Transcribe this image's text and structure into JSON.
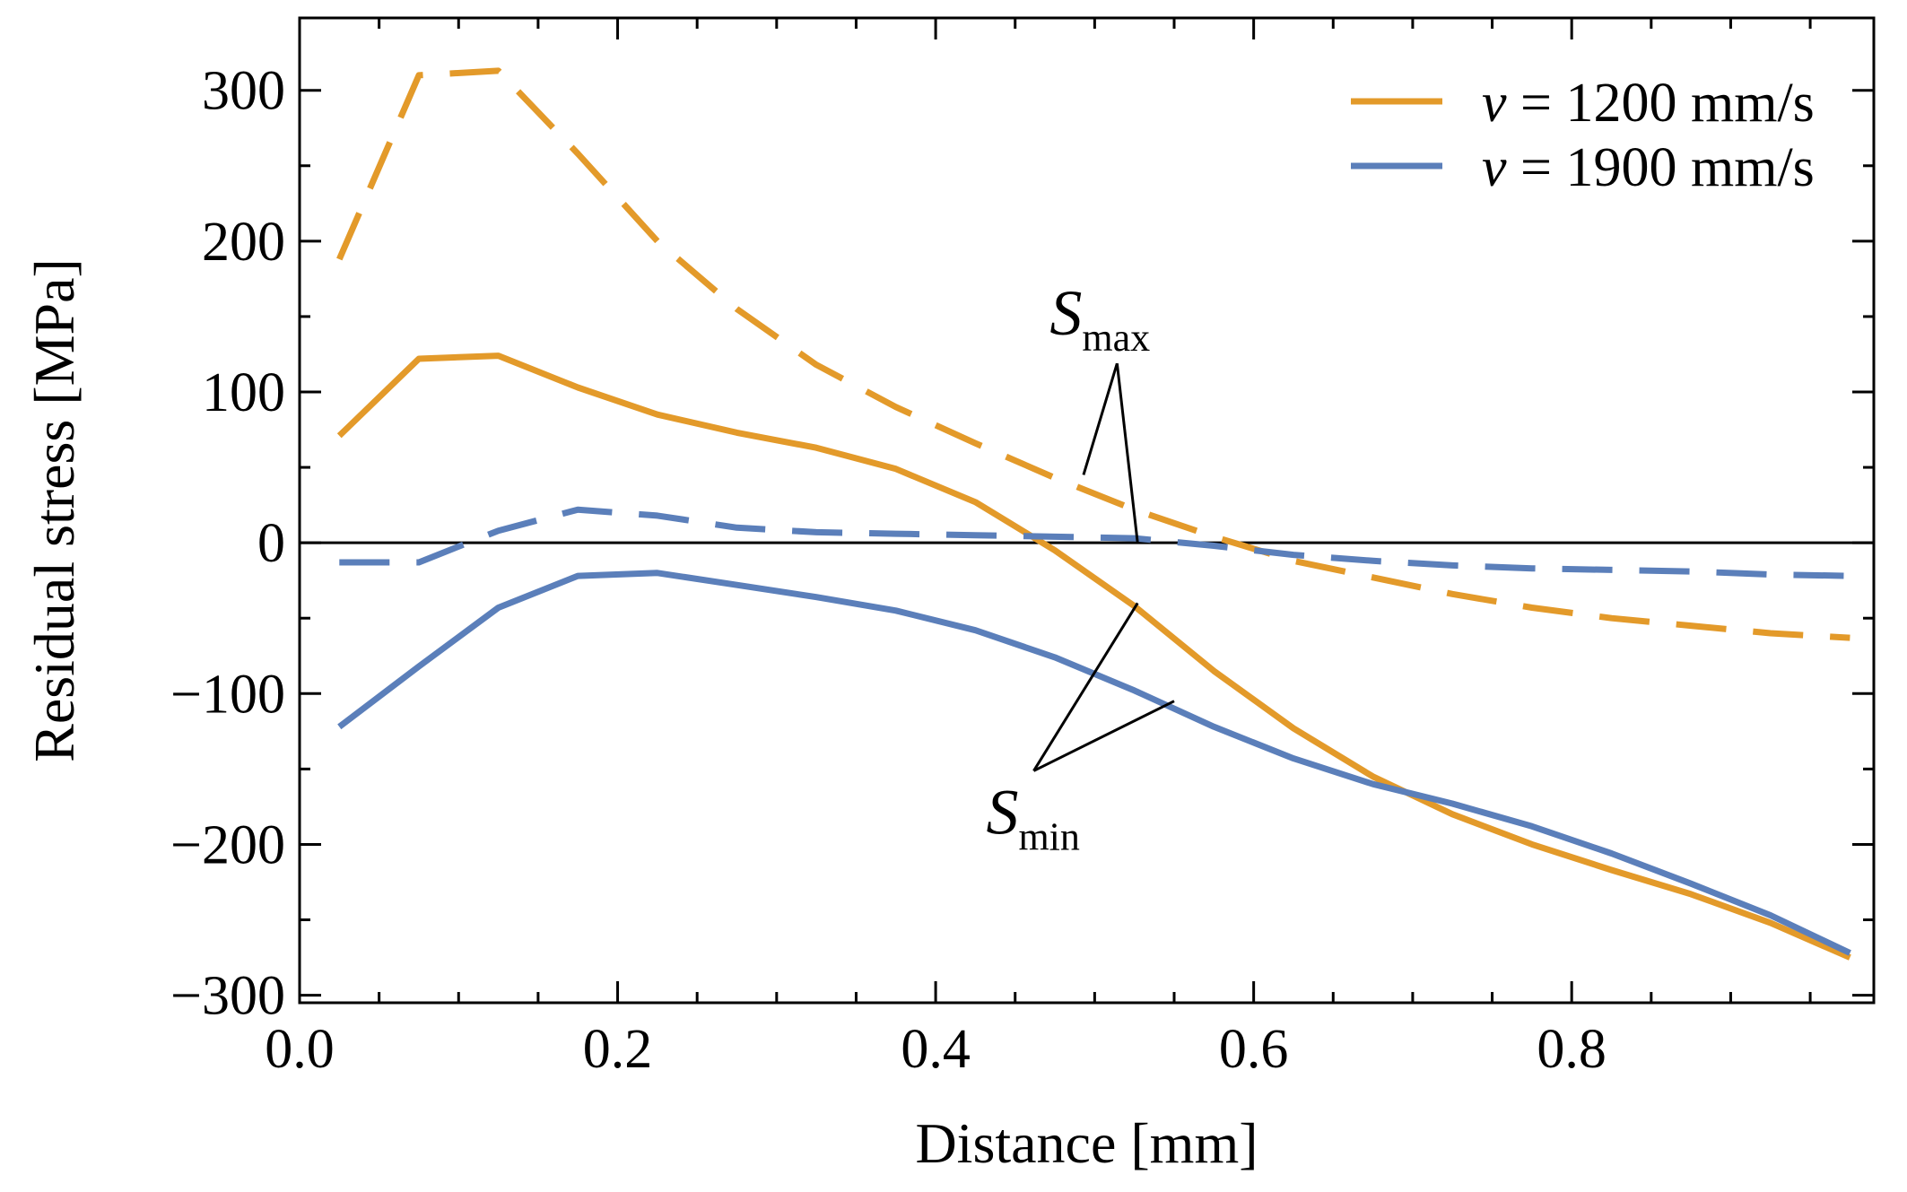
{
  "chart_data": {
    "type": "line",
    "title": "",
    "xlabel": "Distance [mm]",
    "ylabel": "Residual stress [MPa]",
    "xlim": [
      0.0,
      0.99
    ],
    "ylim": [
      -305,
      348
    ],
    "xticks": [
      0.0,
      0.2,
      0.4,
      0.6,
      0.8
    ],
    "xtick_labels": [
      "0.0",
      "0.2",
      "0.4",
      "0.6",
      "0.8"
    ],
    "yticks": [
      300,
      200,
      100,
      0,
      -100,
      -200,
      -300
    ],
    "ytick_labels": [
      "300",
      "200",
      "100",
      "0",
      "−100",
      "−200",
      "−300"
    ],
    "x_minor_step": 0.05,
    "y_minor_step": 50,
    "grid": false,
    "zero_line": true,
    "legend_position": "top-right",
    "x": [
      0.025,
      0.075,
      0.125,
      0.175,
      0.225,
      0.275,
      0.325,
      0.375,
      0.425,
      0.475,
      0.525,
      0.575,
      0.625,
      0.675,
      0.725,
      0.775,
      0.825,
      0.875,
      0.925,
      0.975
    ],
    "series": [
      {
        "name": "S_max, v = 1200 mm/s",
        "color": "#e39a2a",
        "dash": true,
        "values": [
          188,
          310,
          313,
          258,
          200,
          155,
          118,
          90,
          66,
          43,
          22,
          4,
          -12,
          -23,
          -34,
          -43,
          -50,
          -55,
          -60,
          -63
        ]
      },
      {
        "name": "S_min, v = 1200 mm/s",
        "color": "#e39a2a",
        "dash": false,
        "values": [
          71,
          122,
          124,
          103,
          85,
          73,
          63,
          49,
          27,
          -5,
          -42,
          -85,
          -123,
          -155,
          -180,
          -200,
          -217,
          -233,
          -252,
          -275
        ]
      },
      {
        "name": "S_max, v = 1900 mm/s",
        "color": "#5b7fba",
        "dash": true,
        "values": [
          -13,
          -13,
          8,
          22,
          18,
          10,
          7,
          6,
          5,
          4,
          3,
          -2,
          -8,
          -12,
          -15,
          -17,
          -18,
          -19,
          -21,
          -22
        ]
      },
      {
        "name": "S_min, v = 1900 mm/s",
        "color": "#5b7fba",
        "dash": false,
        "values": [
          -122,
          -82,
          -43,
          -22,
          -20,
          -28,
          -36,
          -45,
          -58,
          -76,
          -98,
          -122,
          -143,
          -160,
          -173,
          -188,
          -206,
          -226,
          -247,
          -272
        ]
      }
    ],
    "legend": [
      {
        "label_italic": "v",
        "label_rest": " = 1200 mm/s",
        "color": "#e39a2a"
      },
      {
        "label_italic": "v",
        "label_rest": " = 1900 mm/s",
        "color": "#5b7fba"
      }
    ],
    "annotations": [
      {
        "main": "S",
        "sub": "max",
        "text_x": 0.5,
        "text_y": 132,
        "targets": [
          [
            0.493,
            45
          ],
          [
            0.527,
            0
          ]
        ]
      },
      {
        "main": "S",
        "sub": "min",
        "text_x": 0.46,
        "text_y": -175,
        "targets": [
          [
            0.527,
            -40
          ],
          [
            0.55,
            -105
          ]
        ]
      }
    ]
  }
}
